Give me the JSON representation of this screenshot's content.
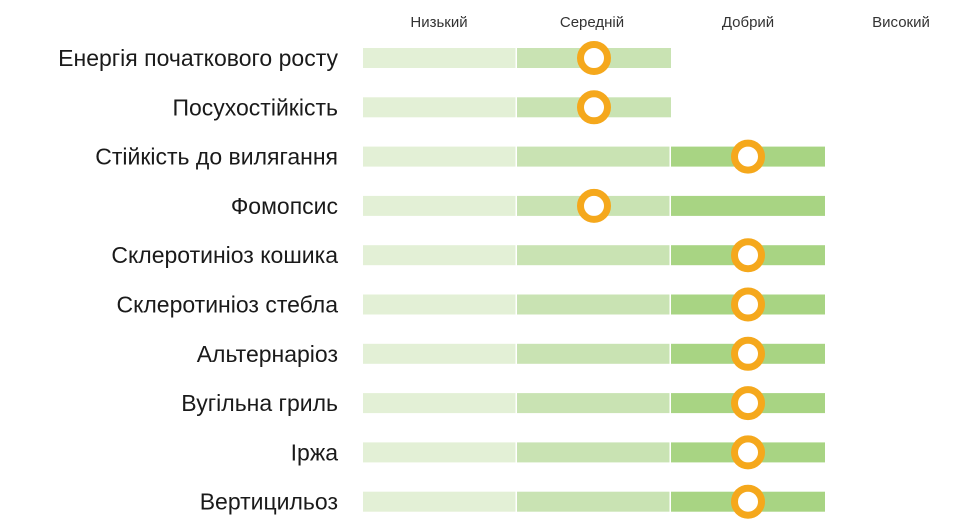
{
  "chart_data": {
    "type": "bar",
    "levels": [
      "Низький",
      "Середній",
      "Добрий",
      "Високий"
    ],
    "rows": [
      {
        "label": "Енергія початкового росту",
        "segments": 2,
        "value": 1.5
      },
      {
        "label": "Посухостійкість",
        "segments": 2,
        "value": 1.5
      },
      {
        "label": "Стійкість до вилягання",
        "segments": 3,
        "value": 2.5
      },
      {
        "label": "Фомопсис",
        "segments": 3,
        "value": 1.5
      },
      {
        "label": "Склеротиніоз кошика",
        "segments": 3,
        "value": 2.5
      },
      {
        "label": "Склеротиніоз стебла",
        "segments": 3,
        "value": 2.5
      },
      {
        "label": "Альтернаріоз",
        "segments": 3,
        "value": 2.5
      },
      {
        "label": "Вугільна гриль",
        "segments": 3,
        "value": 2.5
      },
      {
        "label": "Іржа",
        "segments": 3,
        "value": 2.5
      },
      {
        "label": "Вертицильоз",
        "segments": 3,
        "value": 2.5
      }
    ],
    "colors": {
      "segments": [
        "#e3f0d6",
        "#c9e3b3",
        "#a8d483"
      ],
      "marker": "#f5a81c"
    }
  }
}
